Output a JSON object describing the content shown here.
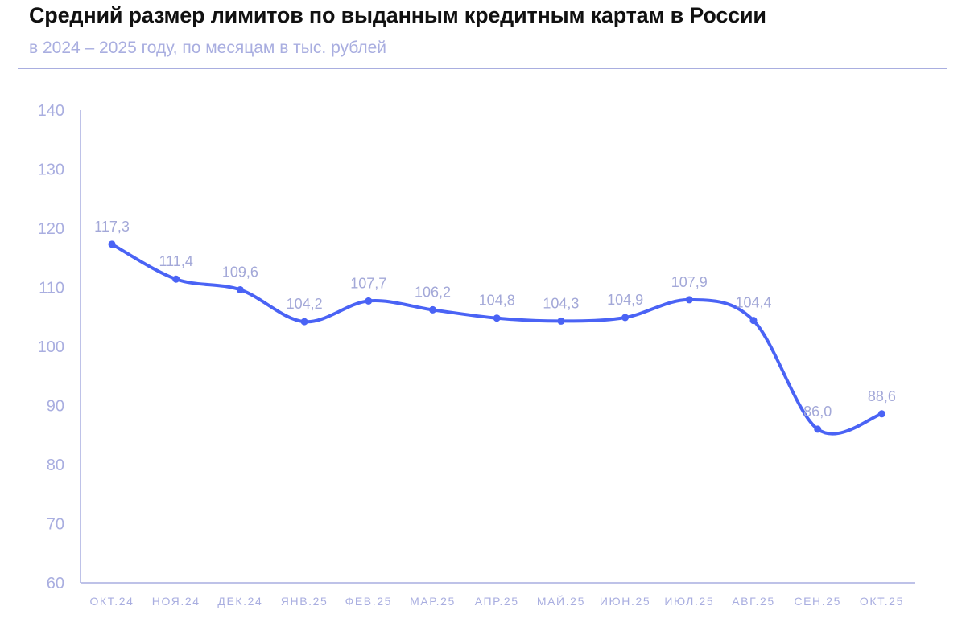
{
  "chart_data": {
    "type": "line",
    "title": "Средний размер лимитов по выданным кредитным картам в России",
    "subtitle": "в 2024 – 2025 году, по месяцам в тыс. рублей",
    "categories": [
      "ОКТ.24",
      "НОЯ.24",
      "ДЕК.24",
      "ЯНВ.25",
      "ФЕВ.25",
      "МАР.25",
      "АПР.25",
      "МАЙ.25",
      "ИЮН.25",
      "ИЮЛ.25",
      "АВГ.25",
      "СЕН.25",
      "ОКТ.25"
    ],
    "values": [
      117.3,
      111.4,
      109.6,
      104.2,
      107.7,
      106.2,
      104.8,
      104.3,
      104.9,
      107.9,
      104.4,
      86.0,
      88.6
    ],
    "data_labels": [
      "117,3",
      "111,4",
      "109,6",
      "104,2",
      "107,7",
      "106,2",
      "104,8",
      "104,3",
      "104,9",
      "107,9",
      "104,4",
      "86,0",
      "88,6"
    ],
    "yticks": [
      60,
      70,
      80,
      90,
      100,
      110,
      120,
      130,
      140
    ],
    "ylim": [
      60,
      140
    ],
    "grid": false,
    "smooth": true,
    "colors": {
      "line": "#4a63f5",
      "axis": "#a9aee0",
      "labels": "#a3a8d8"
    }
  }
}
